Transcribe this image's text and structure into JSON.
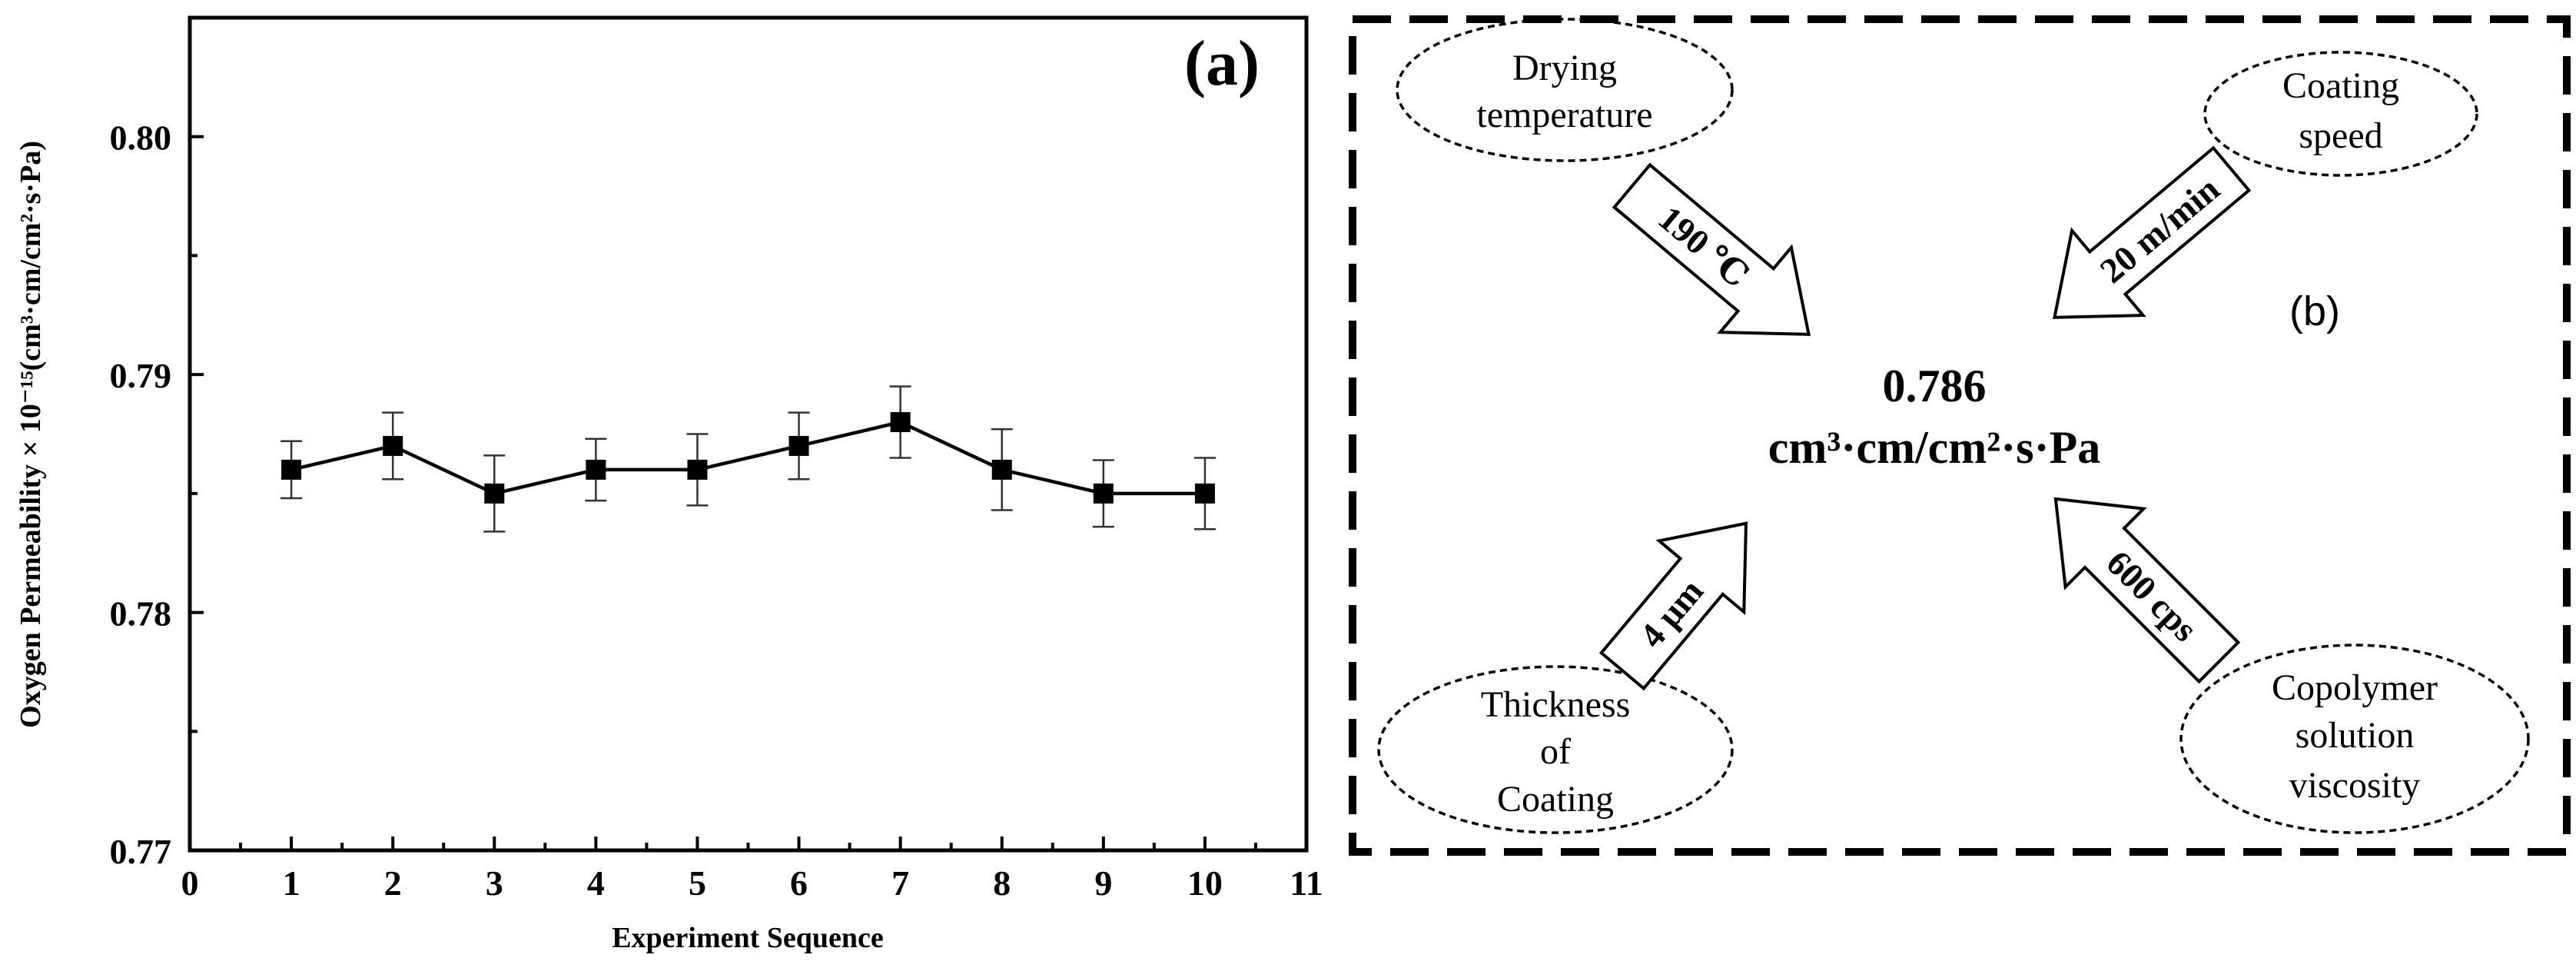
{
  "chart_data": {
    "type": "line",
    "panel_label": "(a)",
    "xlabel": "Experiment Sequence",
    "ylabel": "Oxygen Permeability × 10⁻¹⁵(cm³·cm/cm²·s·Pa)",
    "xlim": [
      0,
      11
    ],
    "ylim": [
      0.77,
      0.805
    ],
    "x_ticks": [
      0,
      1,
      2,
      3,
      4,
      5,
      6,
      7,
      8,
      9,
      10,
      11
    ],
    "y_ticks": [
      0.77,
      0.78,
      0.79,
      0.8
    ],
    "y_tick_labels": [
      "0.77",
      "0.78",
      "0.79",
      "0.80"
    ],
    "series": [
      {
        "name": "Oxygen Permeability",
        "marker": "square",
        "x": [
          1,
          2,
          3,
          4,
          5,
          6,
          7,
          8,
          9,
          10
        ],
        "values": [
          0.786,
          0.787,
          0.785,
          0.786,
          0.786,
          0.787,
          0.788,
          0.786,
          0.785,
          0.785
        ],
        "error": [
          0.0012,
          0.0014,
          0.0016,
          0.0013,
          0.0015,
          0.0014,
          0.0015,
          0.0017,
          0.0014,
          0.0015
        ]
      }
    ]
  },
  "diagram": {
    "panel_label": "(b)",
    "center_value": "0.786",
    "center_unit": "cm³·cm/cm²·s·Pa",
    "factors": [
      {
        "id": "drying",
        "lines": [
          "Drying",
          "temperature"
        ],
        "value": "190 ℃"
      },
      {
        "id": "speed",
        "lines": [
          "Coating",
          "speed"
        ],
        "value": "20 m/min"
      },
      {
        "id": "thickness",
        "lines": [
          "Thickness",
          "of",
          "Coating"
        ],
        "value": "4 μm"
      },
      {
        "id": "viscosity",
        "lines": [
          "Copolymer",
          "solution",
          "viscosity"
        ],
        "value": "600 cps"
      }
    ]
  }
}
